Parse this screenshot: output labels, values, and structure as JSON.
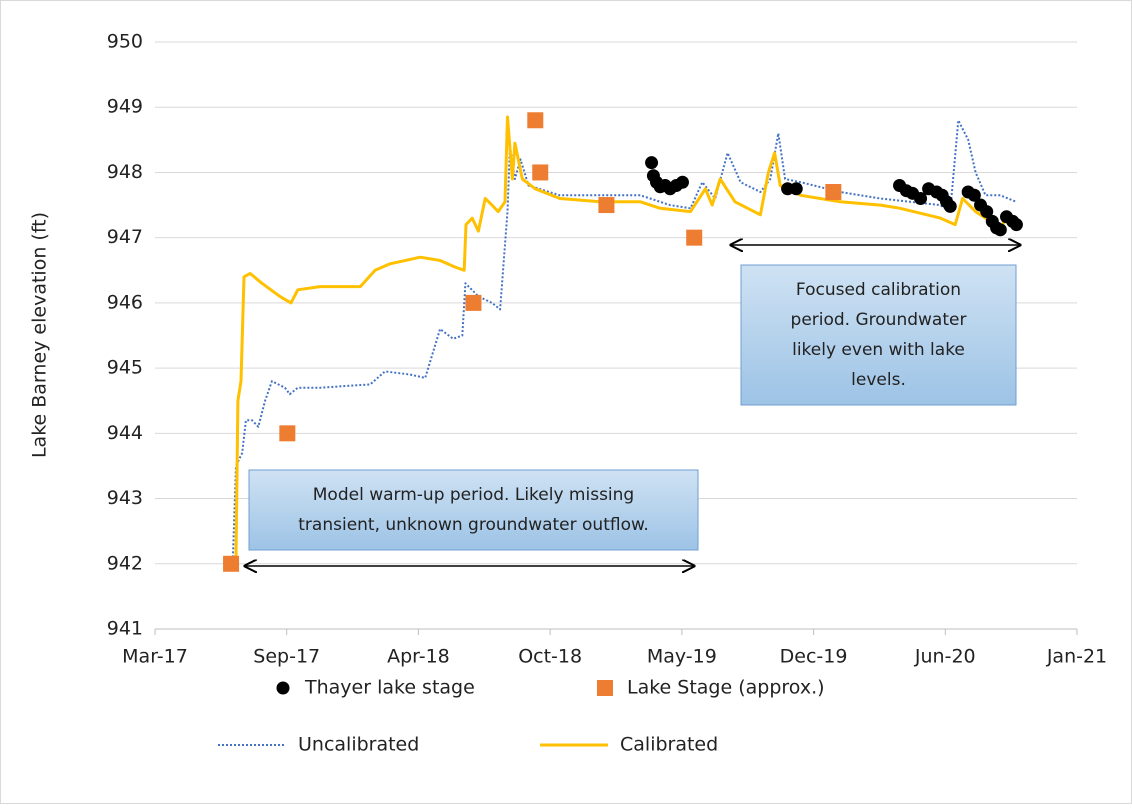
{
  "chart_data": {
    "type": "line",
    "ylabel": "Lake Barney elevation (ft)",
    "xlim": [
      42795,
      44286
    ],
    "xticks": [
      {
        "value": 42795,
        "label": "Mar-17"
      },
      {
        "value": 43008,
        "label": "Sep-17"
      },
      {
        "value": 43221,
        "label": "Apr-18"
      },
      {
        "value": 43434,
        "label": "Oct-18"
      },
      {
        "value": 43647,
        "label": "May-19"
      },
      {
        "value": 43860,
        "label": "Dec-19"
      },
      {
        "value": 44073,
        "label": "Jun-20"
      },
      {
        "value": 44286,
        "label": "Jan-21"
      }
    ],
    "ylim": [
      941,
      950
    ],
    "yticks": [
      941,
      942,
      943,
      944,
      945,
      946,
      947,
      948,
      949,
      950
    ],
    "grid": true,
    "legend": "bottom",
    "annotations": [
      {
        "lines": [
          "Model warm-up period. Likely missing",
          "transient, unknown groundwater outflow."
        ]
      },
      {
        "lines": [
          "Focused calibration",
          "period. Groundwater",
          "likely even with lake",
          "levels."
        ]
      }
    ],
    "series": [
      {
        "name": "Thayer lake stage",
        "color": "#000000",
        "marker": "circle",
        "x": [
          43598,
          43601,
          43606,
          43612,
          43620,
          43628,
          43638,
          43648,
          43818,
          43832,
          43999,
          44010,
          44020,
          44033,
          44046,
          44059,
          44068,
          44075,
          44081,
          44110,
          44120,
          44130,
          44140,
          44149,
          44156,
          44162,
          44172,
          44182,
          44188
        ],
        "values": [
          948.15,
          947.95,
          947.85,
          947.78,
          947.8,
          947.75,
          947.8,
          947.85,
          947.75,
          947.75,
          947.8,
          947.72,
          947.68,
          947.6,
          947.75,
          947.7,
          947.65,
          947.55,
          947.48,
          947.7,
          947.65,
          947.5,
          947.4,
          947.25,
          947.15,
          947.12,
          947.32,
          947.25,
          947.2
        ]
      },
      {
        "name": "Lake Stage (approx.)",
        "color": "#ed7d31",
        "marker": "square",
        "x": [
          42918,
          43009,
          43310,
          43410,
          43418,
          43525,
          43667,
          43892
        ],
        "values": [
          942,
          944,
          946,
          948.8,
          948,
          947.5,
          947,
          947.7
        ]
      },
      {
        "name": "Uncalibrated",
        "color": "#4472c4",
        "style": "dotted",
        "x": [
          42921,
          42926,
          42936,
          42942,
          42952,
          42962,
          42973,
          42984,
          43005,
          43013,
          43026,
          43062,
          43143,
          43167,
          43208,
          43232,
          43256,
          43277,
          43292,
          43297,
          43318,
          43340,
          43353,
          43365,
          43369,
          43377,
          43386,
          43399,
          43450,
          43515,
          43580,
          43628,
          43661,
          43680,
          43701,
          43721,
          43742,
          43774,
          43790,
          43803,
          43814,
          43839,
          43903,
          43968,
          44065,
          44081,
          44094,
          44110,
          44122,
          44138,
          44162,
          44188
        ],
        "values": [
          942.1,
          943.5,
          943.7,
          944.2,
          944.2,
          944.1,
          944.5,
          944.8,
          944.7,
          944.6,
          944.7,
          944.7,
          944.75,
          944.95,
          944.9,
          944.85,
          945.6,
          945.45,
          945.5,
          946.3,
          946.1,
          946,
          945.9,
          947.4,
          948.4,
          947.9,
          948.2,
          947.8,
          947.65,
          947.65,
          947.65,
          947.5,
          947.45,
          947.85,
          947.6,
          948.3,
          947.85,
          947.7,
          947.9,
          948.6,
          947.9,
          947.85,
          947.7,
          947.6,
          947.5,
          947.4,
          948.8,
          948.5,
          948,
          947.65,
          947.65,
          947.55
        ]
      },
      {
        "name": "Calibrated",
        "color": "#ffc000",
        "style": "solid",
        "x": [
          42926,
          42929,
          42934,
          42939,
          42949,
          42968,
          42997,
          43015,
          43026,
          43062,
          43127,
          43151,
          43175,
          43224,
          43256,
          43280,
          43295,
          43298,
          43308,
          43318,
          43329,
          43340,
          43350,
          43361,
          43365,
          43373,
          43377,
          43389,
          43410,
          43450,
          43515,
          43580,
          43612,
          43661,
          43685,
          43696,
          43709,
          43733,
          43774,
          43787,
          43797,
          43806,
          43839,
          43903,
          43968,
          44000,
          44065,
          44089,
          44101,
          44122,
          44146,
          44162,
          44170,
          44178
        ],
        "values": [
          942.1,
          944.5,
          944.8,
          946.4,
          946.45,
          946.3,
          946.1,
          946,
          946.2,
          946.25,
          946.25,
          946.5,
          946.6,
          946.7,
          946.65,
          946.55,
          946.5,
          947.2,
          947.3,
          947.1,
          947.6,
          947.5,
          947.4,
          947.55,
          948.85,
          947.9,
          948.45,
          947.9,
          947.75,
          947.6,
          947.55,
          947.55,
          947.45,
          947.4,
          947.75,
          947.5,
          947.9,
          947.55,
          947.35,
          948,
          948.3,
          947.8,
          947.65,
          947.55,
          947.5,
          947.45,
          947.3,
          947.2,
          947.6,
          947.4,
          947.25,
          947.1,
          947.3,
          947.2
        ]
      }
    ]
  }
}
